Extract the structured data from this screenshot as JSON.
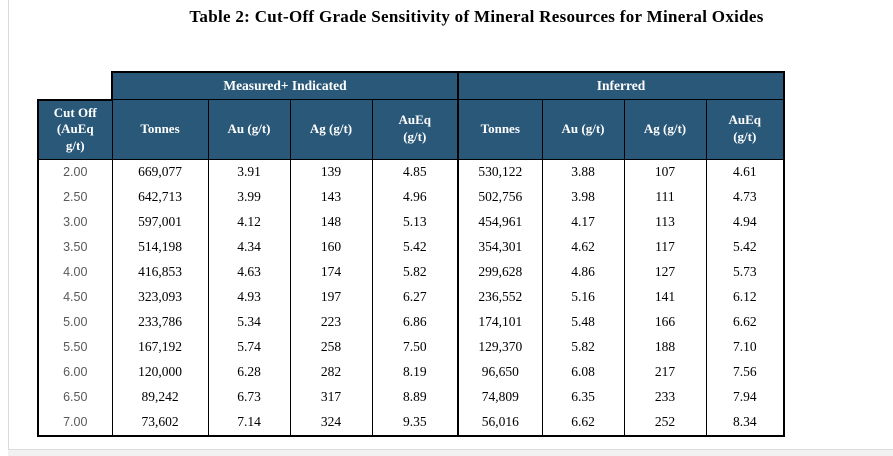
{
  "title": "Table 2: Cut-Off Grade Sensitivity of Mineral Resources for Mineral Oxides",
  "table": {
    "cutoff_header": "Cut Off\n(AuEq\ng/t)",
    "groups": [
      {
        "label": "Measured+ Indicated"
      },
      {
        "label": "Inferred"
      }
    ],
    "columns": [
      "Tonnes",
      "Au (g/t)",
      "Ag (g/t)",
      "AuEq\n(g/t)",
      "Tonnes",
      "Au (g/t)",
      "Ag (g/t)",
      "AuEq\n(g/t)"
    ],
    "rows": [
      {
        "cutoff": "2.00",
        "measured_indicated": [
          "669,077",
          "3.91",
          "139",
          "4.85"
        ],
        "inferred": [
          "530,122",
          "3.88",
          "107",
          "4.61"
        ]
      },
      {
        "cutoff": "2.50",
        "measured_indicated": [
          "642,713",
          "3.99",
          "143",
          "4.96"
        ],
        "inferred": [
          "502,756",
          "3.98",
          "111",
          "4.73"
        ]
      },
      {
        "cutoff": "3.00",
        "measured_indicated": [
          "597,001",
          "4.12",
          "148",
          "5.13"
        ],
        "inferred": [
          "454,961",
          "4.17",
          "113",
          "4.94"
        ]
      },
      {
        "cutoff": "3.50",
        "measured_indicated": [
          "514,198",
          "4.34",
          "160",
          "5.42"
        ],
        "inferred": [
          "354,301",
          "4.62",
          "117",
          "5.42"
        ]
      },
      {
        "cutoff": "4.00",
        "measured_indicated": [
          "416,853",
          "4.63",
          "174",
          "5.82"
        ],
        "inferred": [
          "299,628",
          "4.86",
          "127",
          "5.73"
        ]
      },
      {
        "cutoff": "4.50",
        "measured_indicated": [
          "323,093",
          "4.93",
          "197",
          "6.27"
        ],
        "inferred": [
          "236,552",
          "5.16",
          "141",
          "6.12"
        ]
      },
      {
        "cutoff": "5.00",
        "measured_indicated": [
          "233,786",
          "5.34",
          "223",
          "6.86"
        ],
        "inferred": [
          "174,101",
          "5.48",
          "166",
          "6.62"
        ]
      },
      {
        "cutoff": "5.50",
        "measured_indicated": [
          "167,192",
          "5.74",
          "258",
          "7.50"
        ],
        "inferred": [
          "129,370",
          "5.82",
          "188",
          "7.10"
        ]
      },
      {
        "cutoff": "6.00",
        "measured_indicated": [
          "120,000",
          "6.28",
          "282",
          "8.19"
        ],
        "inferred": [
          "96,650",
          "6.08",
          "217",
          "7.56"
        ]
      },
      {
        "cutoff": "6.50",
        "measured_indicated": [
          "89,242",
          "6.73",
          "317",
          "8.89"
        ],
        "inferred": [
          "74,809",
          "6.35",
          "233",
          "7.94"
        ]
      },
      {
        "cutoff": "7.00",
        "measured_indicated": [
          "73,602",
          "7.14",
          "324",
          "9.35"
        ],
        "inferred": [
          "56,016",
          "6.62",
          "252",
          "8.34"
        ]
      }
    ]
  },
  "colors": {
    "header_bg": "#2A5878",
    "header_text": "#FFFFFF",
    "border": "#000000",
    "cutoff_text": "#595959",
    "data_text": "#000000"
  }
}
